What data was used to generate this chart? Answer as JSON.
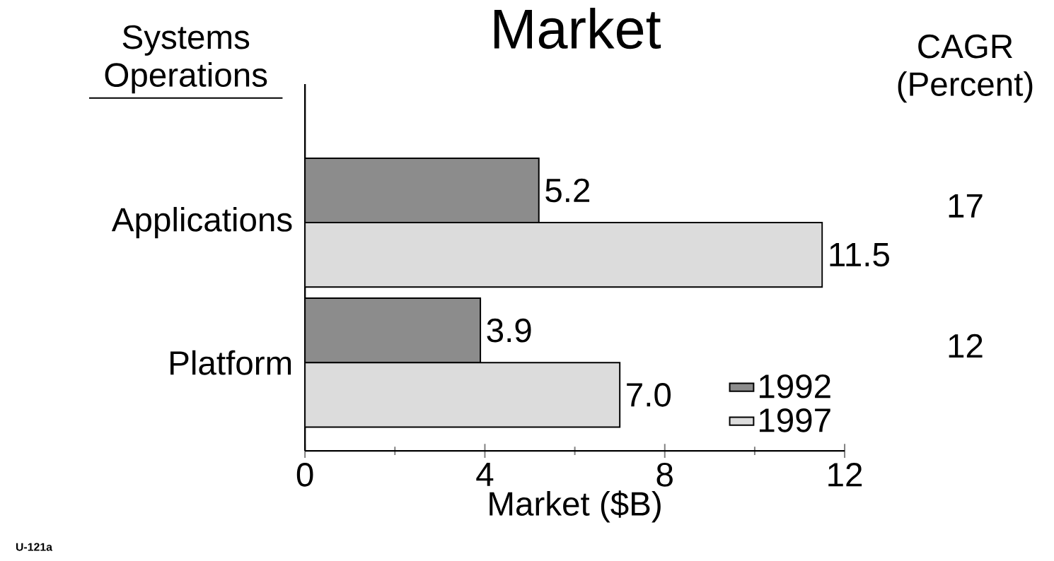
{
  "chart_data": {
    "type": "bar",
    "orientation": "horizontal",
    "title": "Market",
    "xlabel": "Market ($B)",
    "categories": [
      "Applications",
      "Platform"
    ],
    "series": [
      {
        "name": "1992",
        "color": "#8c8c8c",
        "values": [
          5.2,
          3.9
        ],
        "value_labels": [
          "5.2",
          "3.9"
        ]
      },
      {
        "name": "1997",
        "color": "#dcdcdc",
        "values": [
          11.5,
          7.0
        ],
        "value_labels": [
          "11.5",
          "7.0"
        ]
      }
    ],
    "xlim": [
      0,
      12
    ],
    "xticks": [
      0,
      4,
      8,
      12
    ],
    "grid": false,
    "legend": "bottom right",
    "annotations": [
      "Systems Operations",
      "CAGR (Percent)",
      "17",
      "12",
      "U-121a"
    ]
  }
}
